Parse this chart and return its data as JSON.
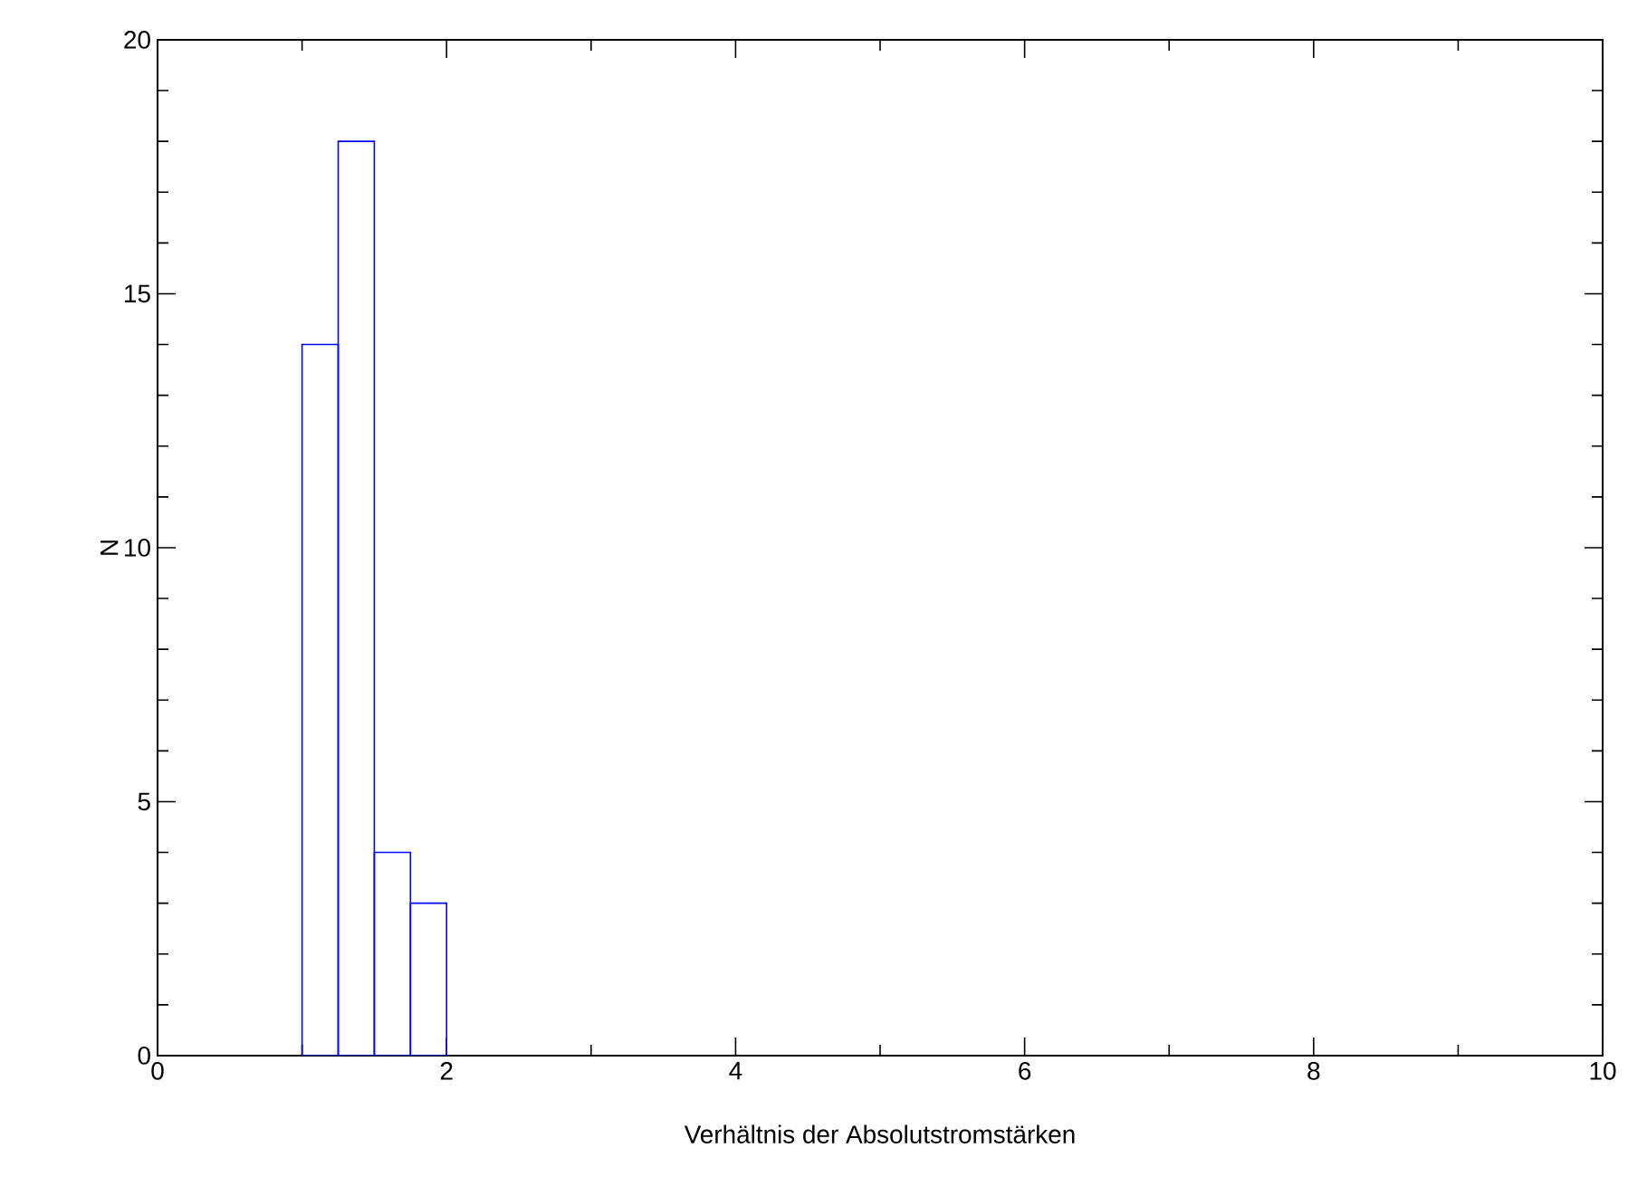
{
  "chart_data": {
    "type": "histogram",
    "xlabel": "Verhältnis der Absolutstromstärken",
    "ylabel": "N",
    "bins": [
      1,
      1.25,
      1.5,
      1.75,
      2
    ],
    "values": [
      14,
      18,
      4,
      3
    ],
    "color": "#0000ff",
    "xlim": [
      0,
      10
    ],
    "xticks": [
      0,
      2,
      4,
      6,
      8,
      10
    ],
    "ylim": [
      0,
      20
    ],
    "yticks": [
      0,
      5,
      10,
      15,
      20
    ],
    "grid": false
  }
}
